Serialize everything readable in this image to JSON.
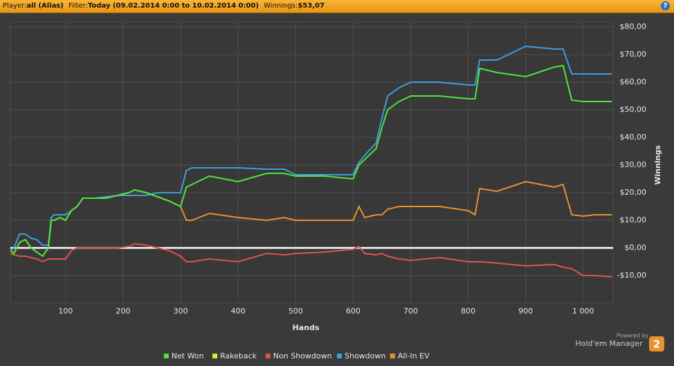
{
  "header": {
    "player_label": "Player:",
    "player": "all (Alias)",
    "filter_label": "Filter:",
    "filter": "Today (09.02.2014 0:00 to 10.02.2014 0:00)",
    "winnings_label": "Winnings:",
    "winnings": "$53,07",
    "help": "?"
  },
  "footer": {
    "powered": "Powered by",
    "brand": "Hold'em Manager",
    "version": "2"
  },
  "chart_data": {
    "type": "line",
    "x_label": "Hands",
    "y_label": "Winnings",
    "grid": true,
    "legend": "bottom",
    "x": [
      4,
      10,
      20,
      30,
      40,
      50,
      60,
      70,
      75,
      80,
      90,
      100,
      110,
      120,
      130,
      150,
      170,
      190,
      210,
      220,
      240,
      260,
      280,
      300,
      310,
      320,
      350,
      400,
      450,
      480,
      500,
      550,
      600,
      610,
      620,
      640,
      650,
      660,
      680,
      700,
      750,
      800,
      812,
      820,
      850,
      900,
      950,
      965,
      980,
      1000,
      1020,
      1050
    ],
    "xlim": [
      4,
      1052
    ],
    "xticks": [
      100,
      200,
      300,
      400,
      500,
      600,
      700,
      800,
      900,
      {
        "value": 1000,
        "label": "1 000"
      }
    ],
    "ylim": [
      -20,
      80
    ],
    "yticks": [
      {
        "value": -10,
        "label": "-$10,00"
      },
      {
        "value": 0,
        "label": "$0,00"
      },
      {
        "value": 10,
        "label": "$10,00"
      },
      {
        "value": 20,
        "label": "$20,00"
      },
      {
        "value": 30,
        "label": "$30,00"
      },
      {
        "value": 40,
        "label": "$40,00"
      },
      {
        "value": 50,
        "label": "$50,00"
      },
      {
        "value": 60,
        "label": "$60,00"
      },
      {
        "value": 70,
        "label": "$70,00"
      },
      {
        "value": 80,
        "label": "$80,00"
      }
    ],
    "series": [
      {
        "name": "Rakeback",
        "color": "#e6e63a",
        "values": [
          0,
          0,
          0,
          0,
          0,
          0,
          0,
          0,
          0,
          0,
          0,
          0,
          0,
          0,
          0,
          0,
          0,
          0,
          0,
          0,
          0,
          0,
          0,
          0,
          0,
          0,
          0,
          0,
          0,
          0,
          0,
          0,
          0,
          0,
          0,
          0,
          0,
          0,
          0,
          0,
          0,
          0,
          0,
          0,
          0,
          0,
          0,
          0,
          0,
          0,
          0,
          0
        ]
      },
      {
        "name": "Non Showdown",
        "color": "#e05252",
        "values": [
          -2,
          -2.5,
          -3,
          -3,
          -3.5,
          -4,
          -5,
          -4,
          -4,
          -4,
          -4,
          -4,
          -1,
          0,
          0,
          0,
          0,
          0,
          0.5,
          1.5,
          1,
          0,
          -1,
          -3,
          -5,
          -5,
          -4,
          -5,
          -2,
          -2.5,
          -2,
          -1.5,
          -0.5,
          0.5,
          -2,
          -2.5,
          -2,
          -3,
          -4,
          -4.5,
          -3.5,
          -5,
          -5,
          -5,
          -5.5,
          -6.5,
          -6,
          -7,
          -7.5,
          -10,
          -10,
          -10.5
        ]
      },
      {
        "name": "All-In EV",
        "color": "#e8912e",
        "values": [
          -0.8,
          -2,
          2,
          3,
          0,
          -1.5,
          -3,
          0,
          10,
          10,
          11,
          10,
          13.5,
          15,
          18,
          18,
          18,
          19,
          20,
          21,
          20,
          18.5,
          17,
          15,
          10,
          10,
          12.5,
          11,
          10,
          11,
          10,
          10,
          10,
          15,
          11,
          12,
          12,
          14,
          15,
          15,
          15,
          13.5,
          12,
          21.5,
          20.5,
          24,
          22,
          23,
          12,
          11.5,
          12,
          12
        ]
      },
      {
        "name": "Showdown",
        "color": "#3f9de0",
        "values": [
          -1,
          0,
          5,
          5,
          3.5,
          3,
          1,
          1,
          11,
          12,
          12,
          12,
          13.5,
          15,
          18,
          18,
          18.5,
          19,
          19,
          19,
          19,
          20,
          20,
          20,
          28,
          29,
          29,
          29,
          28.5,
          28.5,
          26.5,
          26.5,
          26.5,
          31,
          33.5,
          38,
          47,
          55,
          58,
          60,
          60,
          59,
          59,
          68,
          68,
          73,
          72,
          72,
          63,
          63,
          63,
          63
        ]
      },
      {
        "name": "Net Won",
        "color": "#4ee63e",
        "values": [
          -0.8,
          -2,
          2,
          3,
          0,
          -1.5,
          -3,
          0,
          10,
          10,
          11,
          10,
          13.5,
          15,
          18,
          18,
          18,
          19,
          20,
          21,
          20,
          18.5,
          17,
          15,
          22,
          23,
          26,
          24,
          27,
          27,
          26,
          26,
          25,
          30,
          32,
          36,
          43.5,
          50,
          53,
          55,
          55,
          54,
          54,
          65,
          63.5,
          62,
          65.5,
          66,
          53.5,
          53,
          53,
          53
        ]
      }
    ],
    "legend_order": [
      "Net Won",
      "Rakeback",
      "Non Showdown",
      "Showdown",
      "All-In EV"
    ]
  }
}
